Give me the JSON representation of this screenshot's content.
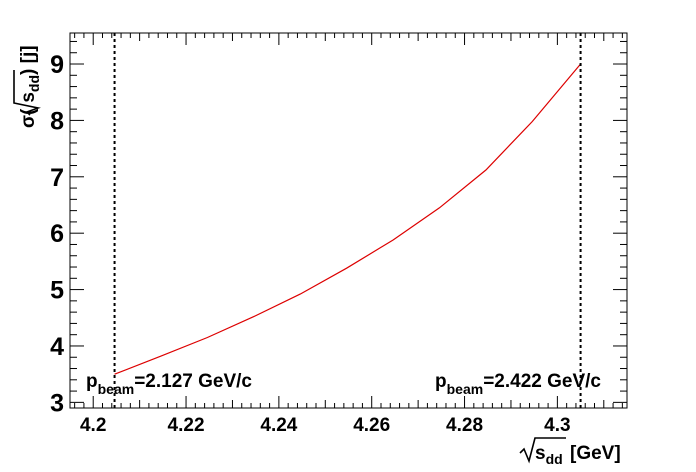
{
  "chart_data": {
    "type": "line",
    "xlabel_base": "s",
    "xlabel_sub": "dd",
    "xlabel_unit": "[GeV]",
    "ylabel_prefix": "σ(",
    "ylabel_base": "s",
    "ylabel_sub": "dd",
    "ylabel_suffix": ") [j]",
    "xlim": [
      4.195,
      4.315
    ],
    "ylim": [
      2.9,
      9.55
    ],
    "x_ticks": [
      4.2,
      4.22,
      4.24,
      4.26,
      4.28,
      4.3
    ],
    "x_tick_labels": [
      "4.2",
      "4.22",
      "4.24",
      "4.26",
      "4.28",
      "4.3"
    ],
    "y_ticks": [
      3,
      4,
      5,
      6,
      7,
      8,
      9
    ],
    "y_tick_labels": [
      "3",
      "4",
      "5",
      "6",
      "7",
      "8",
      "9"
    ],
    "series": [
      {
        "color": "#dd0000",
        "x": [
          4.2046,
          4.2146,
          4.2246,
          4.2346,
          4.2446,
          4.2546,
          4.2646,
          4.2746,
          4.2846,
          4.2946,
          4.305
        ],
        "y": [
          3.5,
          3.82,
          4.15,
          4.52,
          4.92,
          5.38,
          5.88,
          6.45,
          7.12,
          7.98,
          9.0
        ]
      }
    ],
    "vlines": [
      4.2046,
      4.305
    ],
    "annotations": [
      {
        "base": "p",
        "sub": "beam",
        "text": "=2.127 GeV/c"
      },
      {
        "base": "p",
        "sub": "beam",
        "text": "=2.422 GeV/c"
      }
    ]
  }
}
